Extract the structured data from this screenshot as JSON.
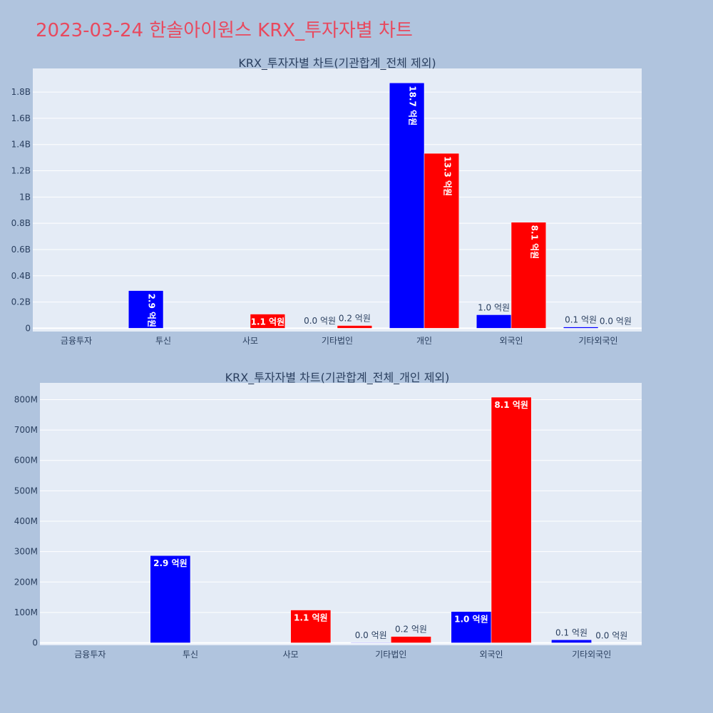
{
  "page_title": "2023-03-24 한솔아이원스 KRX_투자자별 차트",
  "colors": {
    "buy": "#0000ff",
    "sell": "#ff0000",
    "title": "#e8495e",
    "background": "#b0c4de",
    "plot_bg": "#e5ecf6"
  },
  "chart_data": [
    {
      "type": "bar",
      "title": "KRX_투자자별 차트(기관합계_전체 제외)",
      "categories": [
        "금융투자",
        "투신",
        "사모",
        "기타법인",
        "개인",
        "외국인",
        "기타외국인"
      ],
      "ylim": [
        -25000000,
        1980000000
      ],
      "ytick_values": [
        0,
        200000000,
        400000000,
        600000000,
        800000000,
        1000000000,
        1200000000,
        1400000000,
        1600000000,
        1800000000
      ],
      "ytick_labels": [
        "0",
        "0.2B",
        "0.4B",
        "0.6B",
        "0.8B",
        "1B",
        "1.2B",
        "1.4B",
        "1.6B",
        "1.8B"
      ],
      "grid": true,
      "series": [
        {
          "color": "#0000ff",
          "values": [
            0,
            287000000,
            0,
            1500000,
            1870000000,
            103000000,
            10000000
          ],
          "labels": [
            "",
            "2.9 억원",
            "",
            "0.0 억원",
            "18.7 억원",
            "1.0 억원",
            "0.1 억원"
          ],
          "label_modes": [
            "none",
            "inside-vert",
            "none",
            "outside",
            "inside-vert",
            "outside",
            "outside"
          ]
        },
        {
          "color": "#ff0000",
          "values": [
            0,
            0,
            108000000,
            21000000,
            1333000000,
            808000000,
            0
          ],
          "labels": [
            "",
            "",
            "1.1 억원",
            "0.2 억원",
            "13.3 억원",
            "8.1 억원",
            "0.0 억원"
          ],
          "label_modes": [
            "none",
            "none",
            "inside",
            "outside",
            "inside-vert",
            "inside-vert",
            "outside"
          ]
        }
      ]
    },
    {
      "type": "bar",
      "title": "KRX_투자자별 차트(기관합계_전체_개인 제외)",
      "categories": [
        "금융투자",
        "투신",
        "사모",
        "기타법인",
        "외국인",
        "기타외국인"
      ],
      "ylim": [
        -8000000,
        855000000
      ],
      "ytick_values": [
        0,
        100000000,
        200000000,
        300000000,
        400000000,
        500000000,
        600000000,
        700000000,
        800000000
      ],
      "ytick_labels": [
        "0",
        "100M",
        "200M",
        "300M",
        "400M",
        "500M",
        "600M",
        "700M",
        "800M"
      ],
      "grid": true,
      "series": [
        {
          "color": "#0000ff",
          "values": [
            0,
            287000000,
            0,
            1500000,
            103000000,
            10000000
          ],
          "labels": [
            "",
            "2.9 억원",
            "",
            "0.0 억원",
            "1.0 억원",
            "0.1 억원"
          ],
          "label_modes": [
            "none",
            "inside",
            "none",
            "outside",
            "inside",
            "outside"
          ]
        },
        {
          "color": "#ff0000",
          "values": [
            0,
            0,
            108000000,
            21000000,
            808000000,
            0
          ],
          "labels": [
            "",
            "",
            "1.1 억원",
            "0.2 억원",
            "8.1 억원",
            "0.0 억원"
          ],
          "label_modes": [
            "none",
            "none",
            "inside",
            "outside",
            "inside",
            "outside"
          ]
        }
      ]
    }
  ]
}
